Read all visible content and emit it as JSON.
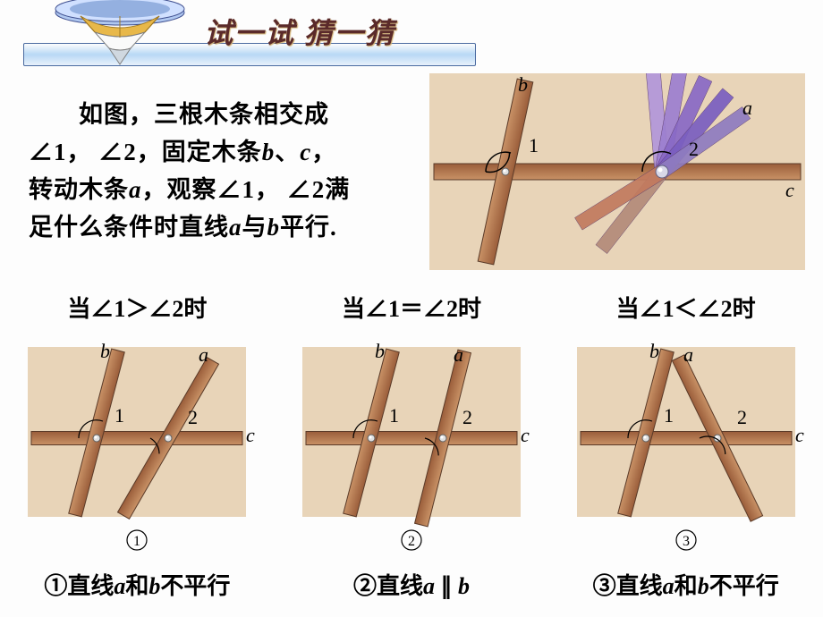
{
  "title": "试一试 猜一猜",
  "intro_line1": "　　如图，三根木条相交成",
  "intro_line2_a": "∠1，",
  "intro_line2_b": "∠2，固定木条",
  "intro_line2_c": "b",
  "intro_line2_d": "、",
  "intro_line2_e": "c",
  "intro_line2_f": "，",
  "intro_line3_a": "转动木条",
  "intro_line3_b": "a",
  "intro_line3_c": "，观察∠1，",
  "intro_line3_d": "∠2满",
  "intro_line4_a": "足什么条件时直线",
  "intro_line4_b": "a",
  "intro_line4_c": "与",
  "intro_line4_d": "b",
  "intro_line4_e": "平行.",
  "main_labels": {
    "a": "a",
    "b": "b",
    "c": "c",
    "one": "1",
    "two": "2"
  },
  "cases": [
    {
      "cond": "当∠1＞∠2时",
      "concl_pre": "①直线",
      "a": "a",
      "mid": "和",
      "b": "b",
      "tail": "不平行",
      "circ": "①"
    },
    {
      "cond": "当∠1＝∠2时",
      "concl_pre": "②直线",
      "a": "a",
      "mid": " ∥ ",
      "b": "b",
      "tail": "",
      "circ": "②"
    },
    {
      "cond": "当∠1＜∠2时",
      "concl_pre": "③直线",
      "a": "a",
      "mid": "和",
      "b": "b",
      "tail": "不平行",
      "circ": "③"
    }
  ],
  "style": {
    "wood_light": "#c99266",
    "wood_dark": "#9a5d3a",
    "wood_border": "#5a3a28",
    "bg_panel": "#e8d4b8",
    "label_font": "italic 22px 'Times New Roman', serif",
    "fan_colors": [
      "#b297da",
      "#9d7fd0",
      "#8969c6",
      "#7a5ec0",
      "#8f7cc0",
      "#b38b7a",
      "#c27a5e"
    ]
  }
}
